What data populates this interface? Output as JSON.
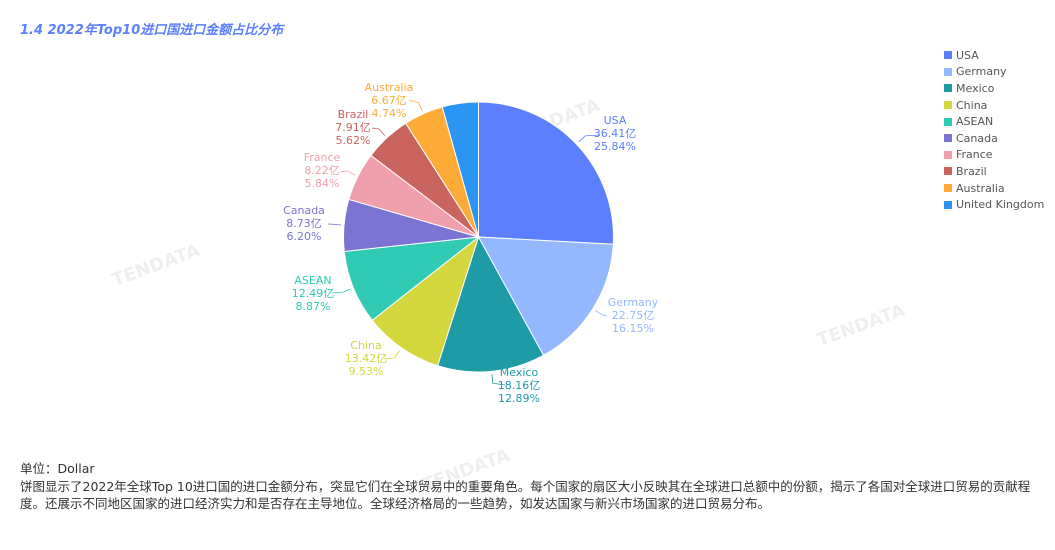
{
  "title": "1.4 2022年Top10进口国进口金额占比分布",
  "watermark": "TENDATA",
  "chart_data": {
    "type": "pie",
    "title": "1.4 2022年Top10进口国进口金额占比分布",
    "unit": "亿",
    "legend_position": "right",
    "slices": [
      {
        "name": "USA",
        "value": 36.41,
        "value_label": "36.41亿",
        "percent": "25.84%",
        "color": "#5b7fff"
      },
      {
        "name": "Germany",
        "value": 22.75,
        "value_label": "22.75亿",
        "percent": "16.15%",
        "color": "#93b8ff"
      },
      {
        "name": "Mexico",
        "value": 18.16,
        "value_label": "18.16亿",
        "percent": "12.89%",
        "color": "#1f9aa7"
      },
      {
        "name": "China",
        "value": 13.42,
        "value_label": "13.42亿",
        "percent": "9.53%",
        "color": "#d4d63d"
      },
      {
        "name": "ASEAN",
        "value": 12.49,
        "value_label": "12.49亿",
        "percent": "8.87%",
        "color": "#31cab4"
      },
      {
        "name": "Canada",
        "value": 8.73,
        "value_label": "8.73亿",
        "percent": "6.20%",
        "color": "#7c74d2"
      },
      {
        "name": "France",
        "value": 8.22,
        "value_label": "8.22亿",
        "percent": "5.84%",
        "color": "#f09fad"
      },
      {
        "name": "Brazil",
        "value": 7.91,
        "value_label": "7.91亿",
        "percent": "5.62%",
        "color": "#c9645f"
      },
      {
        "name": "Australia",
        "value": 6.67,
        "value_label": "6.67亿",
        "percent": "4.74%",
        "color": "#fcac36"
      },
      {
        "name": "United Kingdom",
        "value": 6.09,
        "color": "#2b95f3"
      }
    ]
  },
  "footer": {
    "unit": "单位：Dollar",
    "description": "饼图显示了2022年全球Top 10进口国的进口金额分布，突显它们在全球贸易中的重要角色。每个国家的扇区大小反映其在全球进口总额中的份额，揭示了各国对全球进口贸易的贡献程度。还展示不同地区国家的进口经济实力和是否存在主导地位。全球经济格局的一些趋势，如发达国家与新兴市场国家的进口贸易分布。"
  }
}
